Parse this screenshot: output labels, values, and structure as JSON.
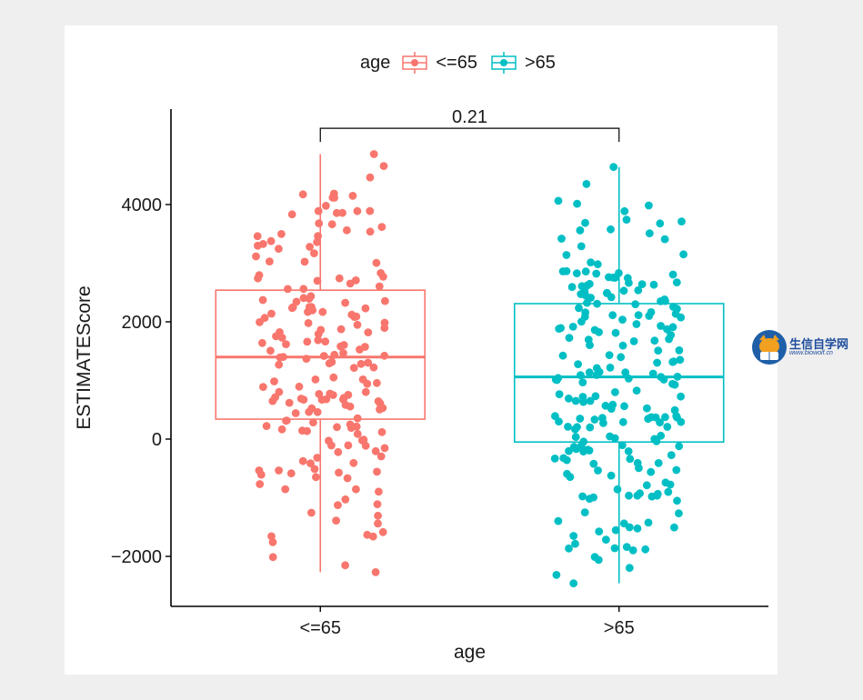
{
  "chart_data": {
    "type": "boxplot",
    "xlabel": "age",
    "ylabel": "ESTIMATEScore",
    "ylim": [
      -2900,
      5500
    ],
    "yticks": [
      -2000,
      0,
      2000,
      4000
    ],
    "yticklabels": [
      "−2000",
      "0",
      "2000",
      "4000"
    ],
    "categories": [
      "<=65",
      ">65"
    ],
    "legend": {
      "title": "age",
      "position": "top",
      "entries": [
        "<=65",
        ">65"
      ]
    },
    "comparison": {
      "label": "0.21",
      "groups": [
        "<=65",
        ">65"
      ]
    },
    "series": [
      {
        "name": "<=65",
        "color": "#F8766D",
        "box": {
          "min": -2270,
          "q1": 340,
          "median": 1400,
          "q3": 2540,
          "max": 4860
        },
        "n_points": 190,
        "seed": 7
      },
      {
        "name": ">65",
        "color": "#00BFC4",
        "box": {
          "min": -2460,
          "q1": -50,
          "median": 1060,
          "q3": 2310,
          "max": 4640
        },
        "n_points": 220,
        "seed": 13
      }
    ]
  },
  "watermark": {
    "text_cn": "生信自学网",
    "url": "www.biowolf.cn"
  }
}
